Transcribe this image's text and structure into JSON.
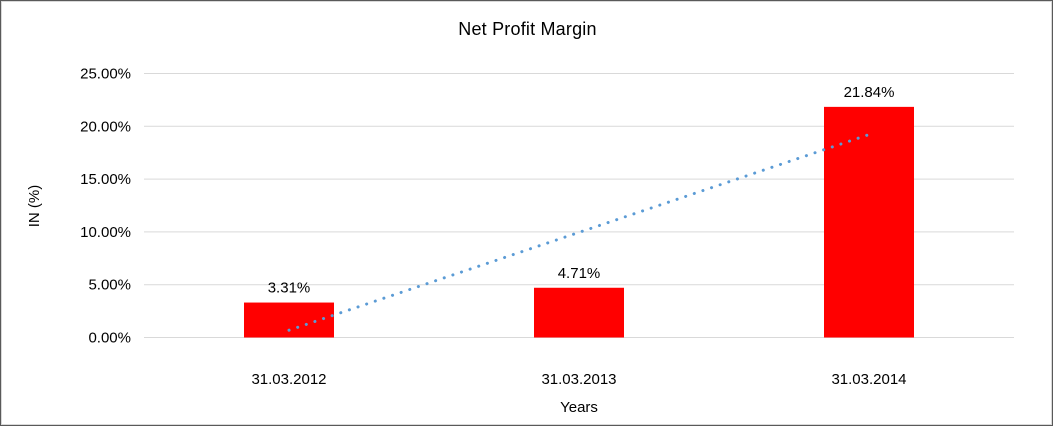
{
  "window": {
    "background_color": "#FFFFFF",
    "border_color": "#595959"
  },
  "chart_data": {
    "type": "bar",
    "title": "Net Profit Margin",
    "xlabel": "Years",
    "ylabel": "IN (%)",
    "categories": [
      "31.03.2012",
      "31.03.2013",
      "31.03.2014"
    ],
    "values": [
      3.31,
      4.71,
      21.84
    ],
    "data_labels": [
      "3.31%",
      "4.71%",
      "21.84%"
    ],
    "ylim": [
      0,
      25
    ],
    "ytick_values": [
      0,
      5,
      10,
      15,
      20,
      25
    ],
    "ytick_labels": [
      "0.00%",
      "5.00%",
      "10.00%",
      "15.00%",
      "20.00%",
      "25.00%"
    ],
    "grid": true,
    "legend": "none",
    "bar_color": "#FF0000",
    "gridline_color": "#D9D9D9",
    "text_color": "#000000",
    "trendline": {
      "type": "linear",
      "style": "dotted",
      "color": "#5B9BD5",
      "start_value": 0.69,
      "end_value": 19.22
    }
  }
}
